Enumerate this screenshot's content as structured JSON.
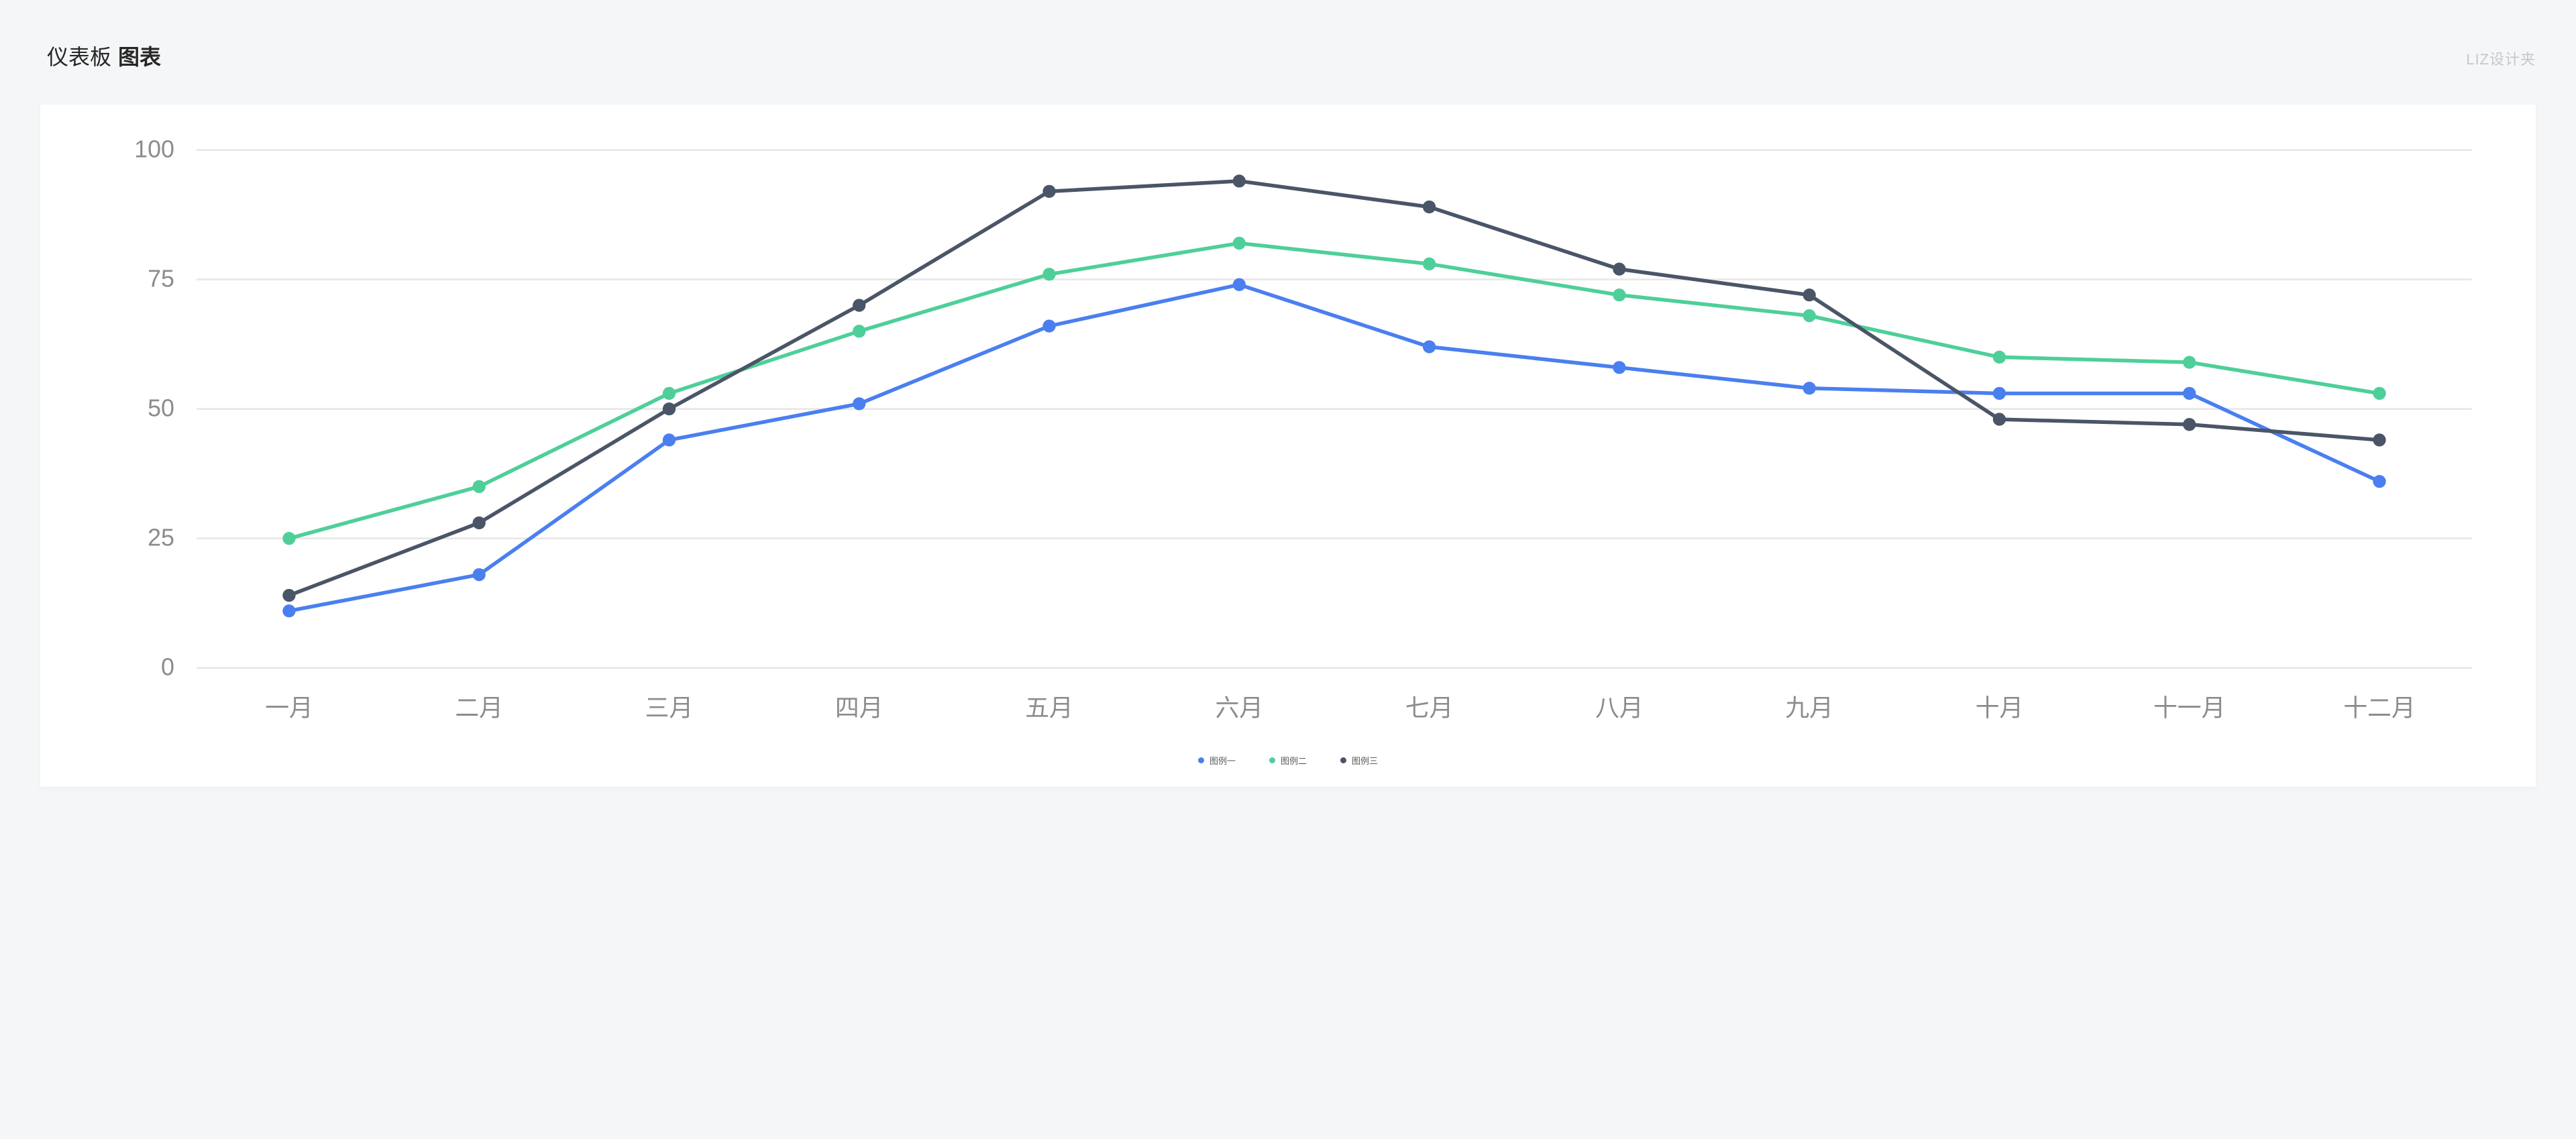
{
  "header": {
    "title_light": "仪表板",
    "title_bold": "图表",
    "brand": "LIZ设计夹"
  },
  "chart": {
    "type": "line",
    "background_color": "#ffffff",
    "page_background": "#f5f6f8",
    "y": {
      "min": 0,
      "max": 100,
      "step": 25,
      "ticks": [
        0,
        25,
        50,
        75,
        100
      ],
      "tick_labels": [
        "0",
        "25",
        "50",
        "75",
        "100"
      ]
    },
    "x": {
      "categories": [
        "一月",
        "二月",
        "三月",
        "四月",
        "五月",
        "六月",
        "七月",
        "八月",
        "九月",
        "十月",
        "十一月",
        "十二月"
      ]
    },
    "grid_color": "#e8e8e8",
    "axis_label_color": "#8c8c8c",
    "axis_label_fontsize": 13,
    "line_width": 2,
    "marker_radius": 3.5,
    "series": [
      {
        "name": "图例一",
        "color": "#4a7ff0",
        "values": [
          11,
          18,
          44,
          51,
          66,
          74,
          62,
          58,
          54,
          53,
          53,
          36
        ]
      },
      {
        "name": "图例二",
        "color": "#4ecf99",
        "values": [
          25,
          35,
          53,
          65,
          76,
          82,
          78,
          72,
          68,
          60,
          59,
          53
        ]
      },
      {
        "name": "图例三",
        "color": "#4b5568",
        "values": [
          14,
          28,
          50,
          70,
          92,
          94,
          89,
          77,
          72,
          48,
          47,
          44
        ]
      }
    ],
    "legend": {
      "position": "bottom-center",
      "gap": 50,
      "fontsize": 13,
      "text_color": "#595959",
      "dot_radius": 4.5
    }
  }
}
